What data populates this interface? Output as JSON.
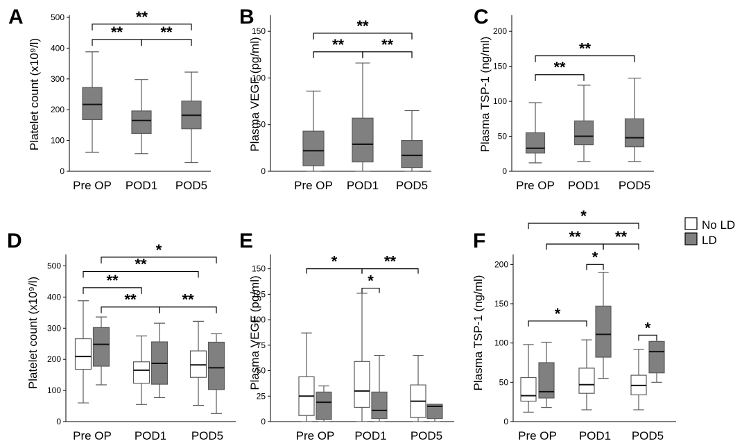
{
  "chart_data": [
    {
      "id": "A",
      "type": "box",
      "letter": "A",
      "ylabel": "Platelet count (x10⁹/l)",
      "ylim": [
        0,
        500
      ],
      "yticks": [
        0,
        100,
        200,
        300,
        400,
        500
      ],
      "categories": [
        "Pre OP",
        "POD1",
        "POD5"
      ],
      "boxes": [
        {
          "cat": 0,
          "group": "LD",
          "min": 62,
          "q1": 168,
          "median": 217,
          "q3": 272,
          "max": 388
        },
        {
          "cat": 1,
          "group": "LD",
          "min": 57,
          "q1": 123,
          "median": 165,
          "q3": 196,
          "max": 298
        },
        {
          "cat": 2,
          "group": "LD",
          "min": 28,
          "q1": 138,
          "median": 182,
          "q3": 228,
          "max": 322
        }
      ],
      "significance": [
        {
          "from": 0,
          "to": 2,
          "y": 478,
          "label": "**"
        },
        {
          "from": 0,
          "to": 1,
          "y": 428,
          "label": "**"
        },
        {
          "from": 1,
          "to": 2,
          "y": 428,
          "label": "**"
        }
      ]
    },
    {
      "id": "B",
      "type": "box",
      "letter": "B",
      "ylabel": "Plasma VEGF (pg/ml)",
      "ylim": [
        0,
        165
      ],
      "yticks": [
        0,
        50,
        100,
        150
      ],
      "categories": [
        "Pre OP",
        "POD1",
        "POD5"
      ],
      "boxes": [
        {
          "cat": 0,
          "group": "LD",
          "min": 0,
          "q1": 6,
          "median": 22,
          "q3": 43,
          "max": 86
        },
        {
          "cat": 1,
          "group": "LD",
          "min": 0,
          "q1": 10,
          "median": 29,
          "q3": 57,
          "max": 116
        },
        {
          "cat": 2,
          "group": "LD",
          "min": 0,
          "q1": 4,
          "median": 17,
          "q3": 33,
          "max": 65
        }
      ],
      "significance": [
        {
          "from": 0,
          "to": 2,
          "y": 148,
          "label": "**"
        },
        {
          "from": 0,
          "to": 1,
          "y": 128,
          "label": "**"
        },
        {
          "from": 1,
          "to": 2,
          "y": 128,
          "label": "**"
        }
      ]
    },
    {
      "id": "C",
      "type": "box",
      "letter": "C",
      "ylabel": "Plasma TSP-1 (ng/ml)",
      "ylim": [
        0,
        220
      ],
      "yticks": [
        0,
        50,
        100,
        150,
        200
      ],
      "categories": [
        "Pre OP",
        "POD1",
        "POD5"
      ],
      "boxes": [
        {
          "cat": 0,
          "group": "LD",
          "min": 12,
          "q1": 26,
          "median": 33,
          "q3": 55,
          "max": 98
        },
        {
          "cat": 1,
          "group": "LD",
          "min": 14,
          "q1": 38,
          "median": 50,
          "q3": 72,
          "max": 123
        },
        {
          "cat": 2,
          "group": "LD",
          "min": 14,
          "q1": 35,
          "median": 48,
          "q3": 75,
          "max": 133
        }
      ],
      "significance": [
        {
          "from": 0,
          "to": 2,
          "y": 165,
          "label": "**"
        },
        {
          "from": 0,
          "to": 1,
          "y": 138,
          "label": "**"
        }
      ]
    },
    {
      "id": "D",
      "type": "box",
      "letter": "D",
      "ylabel": "Platelet count (x10⁹/l)",
      "ylim": [
        0,
        530
      ],
      "yticks": [
        0,
        100,
        200,
        300,
        400,
        500
      ],
      "categories": [
        "Pre OP",
        "POD1",
        "POD5"
      ],
      "boxes": [
        {
          "cat": 0,
          "group": "No LD",
          "min": 60,
          "q1": 168,
          "median": 209,
          "q3": 266,
          "max": 388
        },
        {
          "cat": 0,
          "group": "LD",
          "min": 118,
          "q1": 178,
          "median": 248,
          "q3": 302,
          "max": 336
        },
        {
          "cat": 1,
          "group": "No LD",
          "min": 55,
          "q1": 123,
          "median": 165,
          "q3": 192,
          "max": 275
        },
        {
          "cat": 1,
          "group": "LD",
          "min": 77,
          "q1": 120,
          "median": 187,
          "q3": 256,
          "max": 316
        },
        {
          "cat": 2,
          "group": "No LD",
          "min": 52,
          "q1": 142,
          "median": 182,
          "q3": 227,
          "max": 322
        },
        {
          "cat": 2,
          "group": "LD",
          "min": 26,
          "q1": 103,
          "median": 173,
          "q3": 255,
          "max": 282
        }
      ],
      "significance": [
        {
          "fromCat": 0,
          "fromGroup": 1,
          "toCat": 2,
          "toGroup": 1,
          "y": 528,
          "label": "*"
        },
        {
          "fromCat": 0,
          "fromGroup": 0,
          "toCat": 2,
          "toGroup": 0,
          "y": 482,
          "label": "**"
        },
        {
          "fromCat": 0,
          "fromGroup": 0,
          "toCat": 1,
          "toGroup": 0,
          "y": 430,
          "label": "**"
        },
        {
          "fromCat": 0,
          "fromGroup": 1,
          "toCat": 1,
          "toGroup": 1,
          "y": 368,
          "label": "**"
        },
        {
          "fromCat": 1,
          "fromGroup": 1,
          "toCat": 2,
          "toGroup": 1,
          "y": 368,
          "label": "**"
        }
      ]
    },
    {
      "id": "E",
      "type": "box",
      "letter": "E",
      "ylabel": "Plasma VEGF (pg/ml)",
      "ylim": [
        0,
        162
      ],
      "yticks": [
        0,
        25,
        50,
        75,
        100,
        125,
        150
      ],
      "categories": [
        "Pre OP",
        "POD1",
        "POD5"
      ],
      "boxes": [
        {
          "cat": 0,
          "group": "No LD",
          "min": 0,
          "q1": 6,
          "median": 25,
          "q3": 44,
          "max": 87
        },
        {
          "cat": 0,
          "group": "LD",
          "min": 0,
          "q1": 2,
          "median": 19,
          "q3": 29,
          "max": 35
        },
        {
          "cat": 1,
          "group": "No LD",
          "min": 0,
          "q1": 14,
          "median": 30,
          "q3": 59,
          "max": 126
        },
        {
          "cat": 1,
          "group": "LD",
          "min": 0,
          "q1": 3,
          "median": 11,
          "q3": 29,
          "max": 65
        },
        {
          "cat": 2,
          "group": "No LD",
          "min": 0,
          "q1": 4,
          "median": 20,
          "q3": 36,
          "max": 65
        },
        {
          "cat": 2,
          "group": "LD",
          "min": 0,
          "q1": 3,
          "median": 15,
          "q3": 17,
          "max": 17
        }
      ],
      "significance": [
        {
          "fromCat": 0,
          "fromGroup": 0,
          "toCat": 1,
          "toGroup": 0,
          "y": 150,
          "label": "*"
        },
        {
          "fromCat": 1,
          "fromGroup": 0,
          "toCat": 2,
          "toGroup": 0,
          "y": 150,
          "label": "**"
        },
        {
          "fromCat": 1,
          "fromGroup": 0,
          "toCat": 1,
          "toGroup": 1,
          "y": 131,
          "label": "*"
        }
      ]
    },
    {
      "id": "F",
      "type": "box",
      "letter": "F",
      "ylabel": "Plasma TSP-1 (ng/ml)",
      "ylim": [
        0,
        210
      ],
      "yticks": [
        0,
        50,
        100,
        150,
        200
      ],
      "categories": [
        "Pre OP",
        "POD1",
        "POD5"
      ],
      "boxes": [
        {
          "cat": 0,
          "group": "No LD",
          "min": 12,
          "q1": 26,
          "median": 33,
          "q3": 56,
          "max": 98
        },
        {
          "cat": 0,
          "group": "LD",
          "min": 18,
          "q1": 30,
          "median": 38,
          "q3": 75,
          "max": 101
        },
        {
          "cat": 1,
          "group": "No LD",
          "min": 15,
          "q1": 36,
          "median": 47,
          "q3": 68,
          "max": 104
        },
        {
          "cat": 1,
          "group": "LD",
          "min": 55,
          "q1": 82,
          "median": 111,
          "q3": 147,
          "max": 190
        },
        {
          "cat": 2,
          "group": "No LD",
          "min": 15,
          "q1": 34,
          "median": 46,
          "q3": 59,
          "max": 92
        },
        {
          "cat": 2,
          "group": "LD",
          "min": 50,
          "q1": 62,
          "median": 89,
          "q3": 102,
          "max": 102
        }
      ],
      "significance": [
        {
          "fromCat": 0,
          "fromGroup": 0,
          "toCat": 1,
          "toGroup": 0,
          "y": 128,
          "label": "*"
        },
        {
          "fromCat": 1,
          "fromGroup": 1,
          "toCat": 1,
          "toGroup": 0,
          "y": 200,
          "label": "*"
        },
        {
          "fromCat": 2,
          "fromGroup": 0,
          "toCat": 2,
          "toGroup": 1,
          "y": 110,
          "label": "*"
        }
      ],
      "outer_significance": [
        {
          "fromCat": 0,
          "fromGroup": 0,
          "toCat": 2,
          "toGroup": 0,
          "label": "*"
        },
        {
          "fromCat": 0,
          "fromGroup": 1,
          "toCat": 1,
          "toGroup": 1,
          "label": "**"
        },
        {
          "fromCat": 1,
          "fromGroup": 1,
          "toCat": 2,
          "toGroup": 0,
          "label": "**"
        }
      ]
    }
  ],
  "legend": {
    "placement": "top-right",
    "items": [
      {
        "label": "No LD",
        "color": "#ffffff"
      },
      {
        "label": "LD",
        "color": "#808080"
      }
    ]
  },
  "colors": {
    "box_fill": "#808080",
    "box_fill_noLD": "#ffffff",
    "stroke": "#5a5a5a",
    "axis": "#000000"
  }
}
